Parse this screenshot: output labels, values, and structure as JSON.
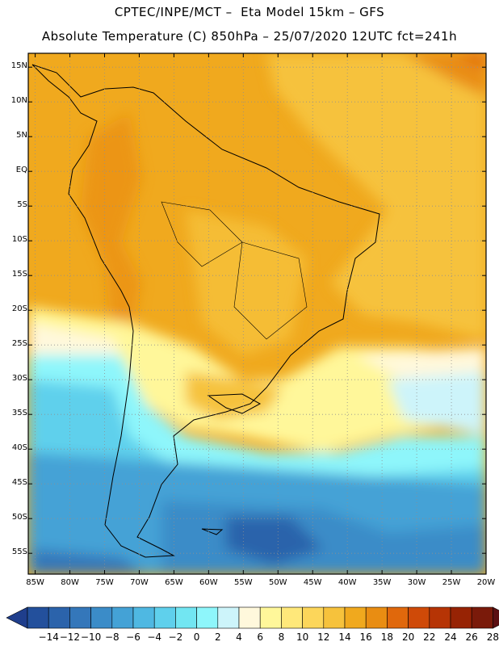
{
  "header": {
    "line1": "CPTEC/INPE/MCT –  Eta Model 15km – GFS",
    "line2": "Absolute Temperature (C) 850hPa – 25/07/2020 12UTC fct=241h"
  },
  "map": {
    "lat_ticks": [
      "15N",
      "10N",
      "5N",
      "EQ",
      "5S",
      "10S",
      "15S",
      "20S",
      "25S",
      "30S",
      "35S",
      "40S",
      "45S",
      "50S",
      "55S"
    ],
    "lon_ticks": [
      "85W",
      "80W",
      "75W",
      "70W",
      "65W",
      "60W",
      "55W",
      "50W",
      "45W",
      "40W",
      "35W",
      "30W",
      "25W",
      "20W"
    ],
    "extent": {
      "lon": [
        -86,
        -20
      ],
      "lat": [
        -58,
        17
      ]
    },
    "gridlines": "dotted"
  },
  "colorbar": {
    "labels": [
      "-14",
      "-12",
      "-10",
      "-8",
      "-6",
      "-4",
      "-2",
      "0",
      "2",
      "4",
      "6",
      "8",
      "10",
      "12",
      "14",
      "16",
      "18",
      "20",
      "22",
      "24",
      "26",
      "28"
    ],
    "colors": [
      "#1f3e8c",
      "#23509c",
      "#2b63ab",
      "#3477ba",
      "#3b8cc8",
      "#44a2d6",
      "#4fb8e2",
      "#5fd0ec",
      "#72e6f2",
      "#8ef6fb",
      "#cdf4fa",
      "#fff8dc",
      "#fff79a",
      "#ffe87a",
      "#fcd65a",
      "#f6c23c",
      "#f0a91e",
      "#e98d12",
      "#e0680c",
      "#cf4a08",
      "#b63405",
      "#972304",
      "#7a1a0a",
      "#5b0f12"
    ]
  }
}
